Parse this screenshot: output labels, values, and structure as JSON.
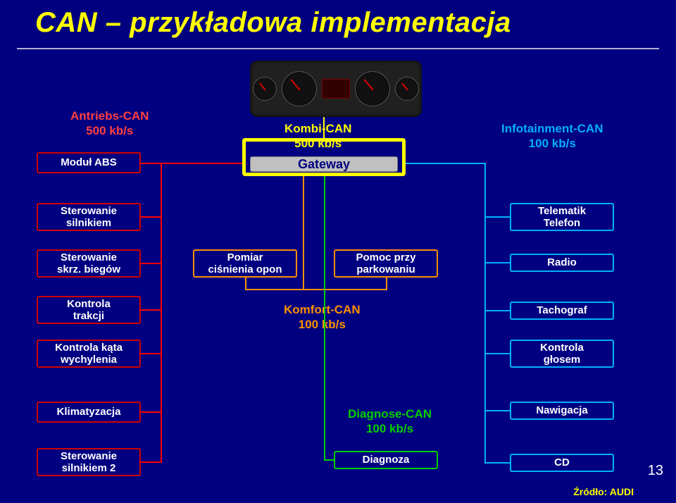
{
  "title": "CAN – przykładowa implementacja",
  "page_number": "13",
  "source": "Źródło: AUDI",
  "gateway_box_label": "Gateway",
  "buses": {
    "antriebs": {
      "name": "Antriebs-CAN",
      "rate": "500 kb/s",
      "color": "#ff0000"
    },
    "kombi": {
      "name": "Kombi-CAN",
      "rate": "500 kb/s",
      "color": "#ffff00"
    },
    "info": {
      "name": "Infotainment-CAN",
      "rate": "100 kb/s",
      "color": "#00b0ff"
    },
    "komfort": {
      "name": "Komfort-CAN",
      "rate": "100 kb/s",
      "color": "#ff9000"
    },
    "diagnose": {
      "name": "Diagnose-CAN",
      "rate": "100 kb/s",
      "color": "#00d000"
    }
  },
  "modules": {
    "abs": {
      "label": "Moduł ABS",
      "bus": "antriebs"
    },
    "silnik": {
      "label": "Sterowanie\nsilnikiem",
      "bus": "antriebs"
    },
    "skrz": {
      "label": "Sterowanie\nskrz. biegów",
      "bus": "antriebs"
    },
    "trakcji": {
      "label": "Kontrola\ntrakcji",
      "bus": "antriebs"
    },
    "kat": {
      "label": "Kontrola kąta\nwychylenia",
      "bus": "antriebs"
    },
    "klima": {
      "label": "Klimatyzacja",
      "bus": "antriebs"
    },
    "silnik2": {
      "label": "Sterowanie\nsilnikiem 2",
      "bus": "antriebs"
    },
    "opon": {
      "label": "Pomiar\nciśnienia opon",
      "bus": "komfort"
    },
    "park": {
      "label": "Pomoc przy\nparkowaniu",
      "bus": "komfort"
    },
    "diag": {
      "label": "Diagnoza",
      "bus": "diagnose"
    },
    "telematik": {
      "label": "Telematik\nTelefon",
      "bus": "info"
    },
    "radio": {
      "label": "Radio",
      "bus": "info"
    },
    "tacho": {
      "label": "Tachograf",
      "bus": "info"
    },
    "glos": {
      "label": "Kontrola\ngłosem",
      "bus": "info"
    },
    "nawig": {
      "label": "Nawigacja",
      "bus": "info"
    },
    "cd": {
      "label": "CD",
      "bus": "info"
    }
  },
  "colors": {
    "bg": "#000080",
    "title": "#ffff00",
    "module_text": "#ffffff"
  }
}
